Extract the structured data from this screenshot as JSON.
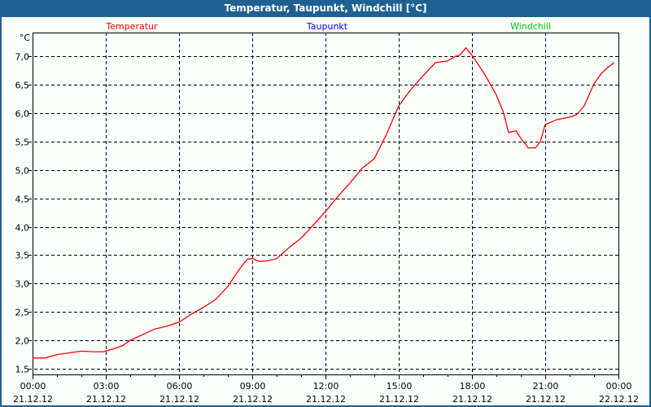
{
  "window": {
    "title": "Temperatur, Taupunkt, Windchill [°C]"
  },
  "chart_data": {
    "type": "line",
    "title": "Temperatur, Taupunkt, Windchill [°C]",
    "ylabel": "°C",
    "ylim": [
      1.4,
      7.42
    ],
    "xlim": [
      0,
      24
    ],
    "grid": true,
    "legend": [
      {
        "name": "Temperatur",
        "color": "#ff0000"
      },
      {
        "name": "Taupunkt",
        "color": "#0000ff"
      },
      {
        "name": "Windchill",
        "color": "#00c000"
      }
    ],
    "y_ticks": [
      {
        "value": 1.5,
        "label": "1,5"
      },
      {
        "value": 2.0,
        "label": "2,0"
      },
      {
        "value": 2.5,
        "label": "2,5"
      },
      {
        "value": 3.0,
        "label": "3,0"
      },
      {
        "value": 3.5,
        "label": "3,5"
      },
      {
        "value": 4.0,
        "label": "4,0"
      },
      {
        "value": 4.5,
        "label": "4,5"
      },
      {
        "value": 5.0,
        "label": "5,0"
      },
      {
        "value": 5.5,
        "label": "5,5"
      },
      {
        "value": 6.0,
        "label": "6,0"
      },
      {
        "value": 6.5,
        "label": "6,5"
      },
      {
        "value": 7.0,
        "label": "7,0"
      }
    ],
    "x_ticks": [
      {
        "hour": 0,
        "time": "00:00",
        "date": "21.12.12"
      },
      {
        "hour": 3,
        "time": "03:00",
        "date": "21.12.12"
      },
      {
        "hour": 6,
        "time": "06:00",
        "date": "21.12.12"
      },
      {
        "hour": 9,
        "time": "09:00",
        "date": "21.12.12"
      },
      {
        "hour": 12,
        "time": "12:00",
        "date": "21.12.12"
      },
      {
        "hour": 15,
        "time": "15:00",
        "date": "21.12.12"
      },
      {
        "hour": 18,
        "time": "18:00",
        "date": "21.12.12"
      },
      {
        "hour": 21,
        "time": "21:00",
        "date": "21.12.12"
      },
      {
        "hour": 24,
        "time": "00:00",
        "date": "22.12.12"
      }
    ],
    "series": [
      {
        "name": "Temperatur",
        "x": [
          0,
          0.5,
          1,
          1.5,
          2,
          2.5,
          2.9,
          3.3,
          3.7,
          4,
          4.5,
          5,
          5.5,
          6,
          6.5,
          7,
          7.5,
          8,
          8.5,
          8.8,
          9,
          9.3,
          9.6,
          10,
          10.5,
          11,
          11.5,
          12,
          12.5,
          13,
          13.5,
          14,
          14.5,
          15,
          15.5,
          16,
          16.5,
          17,
          17.3,
          17.5,
          17.75,
          18,
          18.5,
          19,
          19.3,
          19.5,
          19.8,
          20,
          20.3,
          20.6,
          20.8,
          21,
          21.5,
          22,
          22.3,
          22.6,
          23,
          23.3,
          23.6,
          23.83
        ],
        "y": [
          1.69,
          1.69,
          1.75,
          1.78,
          1.81,
          1.8,
          1.8,
          1.85,
          1.91,
          2.0,
          2.1,
          2.2,
          2.25,
          2.32,
          2.46,
          2.58,
          2.72,
          2.95,
          3.27,
          3.43,
          3.44,
          3.39,
          3.4,
          3.44,
          3.63,
          3.8,
          4.03,
          4.27,
          4.53,
          4.77,
          5.03,
          5.2,
          5.63,
          6.13,
          6.42,
          6.66,
          6.89,
          6.92,
          7.0,
          7.02,
          7.15,
          7.02,
          6.7,
          6.32,
          6.0,
          5.66,
          5.69,
          5.56,
          5.39,
          5.39,
          5.5,
          5.8,
          5.89,
          5.93,
          5.98,
          6.13,
          6.52,
          6.7,
          6.82,
          6.89
        ]
      }
    ]
  }
}
